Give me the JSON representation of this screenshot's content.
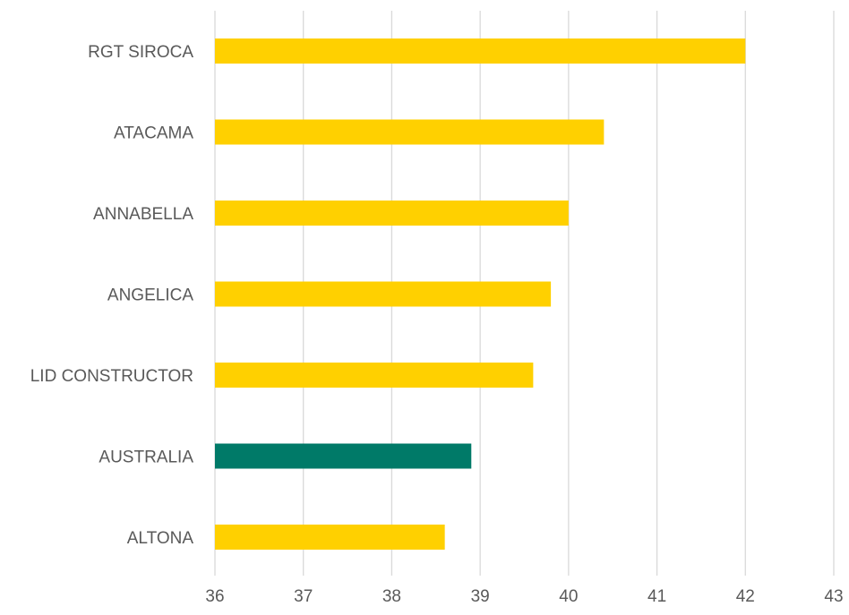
{
  "chart_data": {
    "type": "bar",
    "orientation": "horizontal",
    "title": "",
    "xlabel": "",
    "ylabel": "",
    "categories": [
      "RGT SIROCA",
      "ATACAMA",
      "ANNABELLA",
      "ANGELICA",
      "LID CONSTRUCTOR",
      "AUSTRALIA",
      "ALTONA"
    ],
    "values": [
      42.0,
      40.4,
      40.0,
      39.8,
      39.6,
      38.9,
      38.6
    ],
    "bar_colors": [
      "#FFD000",
      "#FFD000",
      "#FFD000",
      "#FFD000",
      "#FFD000",
      "#007A68",
      "#FFD000"
    ],
    "xlim": [
      36,
      43
    ],
    "xticks": [
      "36",
      "37",
      "38",
      "39",
      "40",
      "41",
      "42",
      "43"
    ],
    "grid": "vertical",
    "legend": "none"
  }
}
